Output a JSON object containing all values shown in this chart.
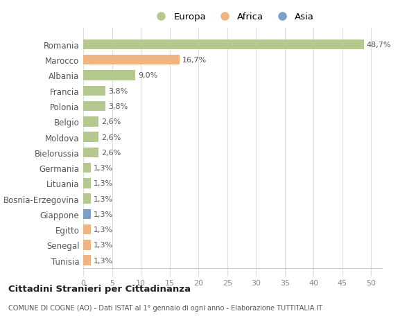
{
  "categories": [
    "Romania",
    "Marocco",
    "Albania",
    "Francia",
    "Polonia",
    "Belgio",
    "Moldova",
    "Bielorussia",
    "Germania",
    "Lituania",
    "Bosnia-Erzegovina",
    "Giappone",
    "Egitto",
    "Senegal",
    "Tunisia"
  ],
  "values": [
    48.7,
    16.7,
    9.0,
    3.8,
    3.8,
    2.6,
    2.6,
    2.6,
    1.3,
    1.3,
    1.3,
    1.3,
    1.3,
    1.3,
    1.3
  ],
  "labels": [
    "48,7%",
    "16,7%",
    "9,0%",
    "3,8%",
    "3,8%",
    "2,6%",
    "2,6%",
    "2,6%",
    "1,3%",
    "1,3%",
    "1,3%",
    "1,3%",
    "1,3%",
    "1,3%",
    "1,3%"
  ],
  "colors": [
    "#b5c98e",
    "#f0b482",
    "#b5c98e",
    "#b5c98e",
    "#b5c98e",
    "#b5c98e",
    "#b5c98e",
    "#b5c98e",
    "#b5c98e",
    "#b5c98e",
    "#b5c98e",
    "#7b9fc7",
    "#f0b482",
    "#f0b482",
    "#f0b482"
  ],
  "legend_labels": [
    "Europa",
    "Africa",
    "Asia"
  ],
  "legend_colors": [
    "#b5c98e",
    "#f0b482",
    "#7b9fc7"
  ],
  "title": "Cittadini Stranieri per Cittadinanza",
  "subtitle": "COMUNE DI COGNE (AO) - Dati ISTAT al 1° gennaio di ogni anno - Elaborazione TUTTITALIA.IT",
  "xlim": [
    0,
    52
  ],
  "xlabel_ticks": [
    0,
    5,
    10,
    15,
    20,
    25,
    30,
    35,
    40,
    45,
    50
  ],
  "background_color": "#ffffff",
  "grid_color": "#dddddd"
}
